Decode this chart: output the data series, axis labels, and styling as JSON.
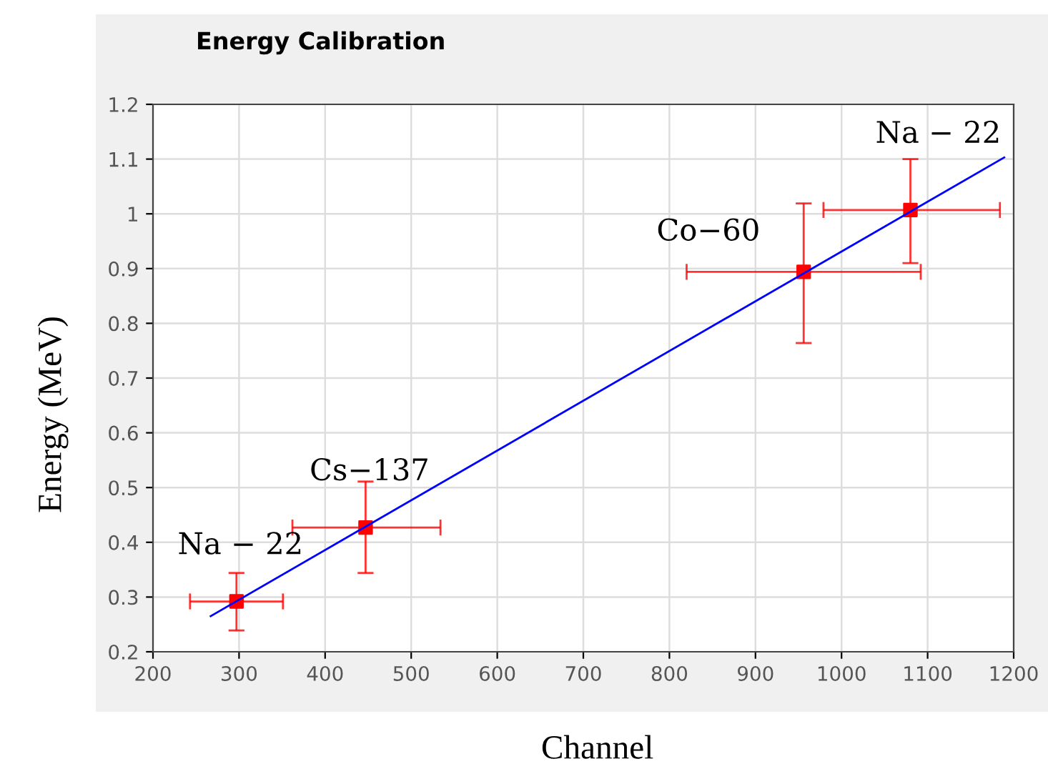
{
  "chart_data": {
    "type": "scatter",
    "title": "Energy Calibration",
    "xlabel": "Channel",
    "ylabel": "Energy (MeV)",
    "xlim": [
      200,
      1200
    ],
    "ylim": [
      0.2,
      1.2
    ],
    "xticks": [
      200,
      300,
      400,
      500,
      600,
      700,
      800,
      900,
      1000,
      1100,
      1200
    ],
    "yticks": [
      0.2,
      0.3,
      0.4,
      0.5,
      0.6,
      0.7,
      0.8,
      0.9,
      1,
      1.1,
      1.2
    ],
    "grid": true,
    "series": [
      {
        "color": "#ff0000",
        "marker": "square",
        "x": [
          297,
          447,
          956,
          1080
        ],
        "values": [
          0.292,
          0.427,
          0.894,
          1.007
        ],
        "errors": [
          [
            0.239,
            0.344
          ],
          [
            0.344,
            0.511
          ],
          [
            0.764,
            1.019
          ],
          [
            0.91,
            1.1
          ]
        ],
        "xerrors": [
          [
            243,
            351
          ],
          [
            362,
            534
          ],
          [
            820,
            1092
          ],
          [
            979,
            1184
          ]
        ]
      },
      {
        "type": "line",
        "color": "#0000ff",
        "marker": "none",
        "line_style": "solid",
        "x": [
          267,
          1189
        ],
        "values": [
          0.265,
          1.103
        ]
      }
    ],
    "annotations": [
      {
        "text": "Na − 22",
        "x": 297,
        "y": 0.292
      },
      {
        "text": "Cs−137",
        "x": 447,
        "y": 0.427
      },
      {
        "text": "Co−60",
        "x": 956,
        "y": 0.894
      },
      {
        "text": "Na − 22",
        "x": 1080,
        "y": 1.007
      }
    ]
  }
}
